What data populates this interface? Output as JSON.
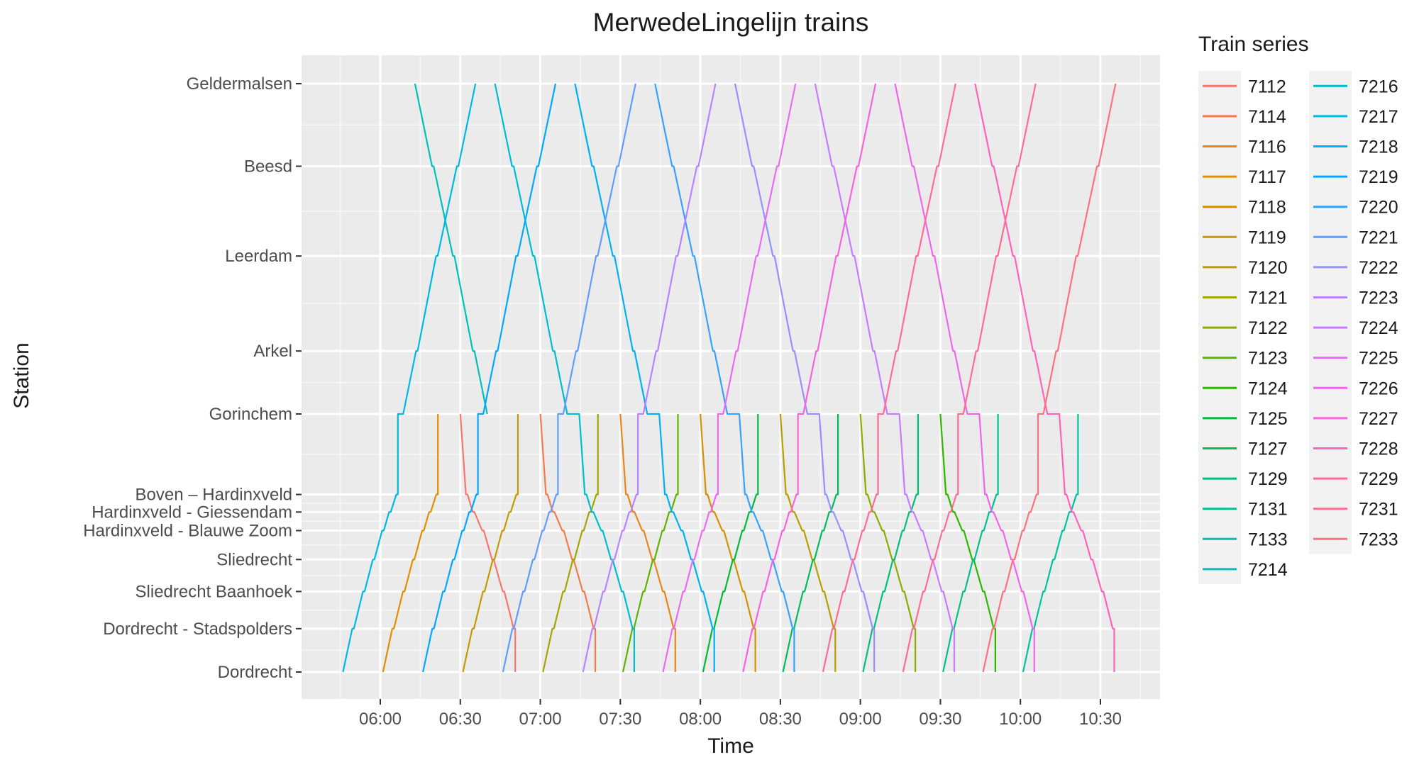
{
  "chart_data": {
    "type": "line",
    "title": "MerwedeLingelijn trains",
    "xlabel": "Time",
    "ylabel": "Station",
    "x_ticks": [
      "06:00",
      "06:30",
      "07:00",
      "07:30",
      "08:00",
      "08:30",
      "09:00",
      "09:30",
      "10:00",
      "10:30"
    ],
    "x_range": [
      "05:45",
      "11:30"
    ],
    "stations": [
      {
        "name": "Geldermalsen",
        "km": 57.0
      },
      {
        "name": "Beesd",
        "km": 49.0
      },
      {
        "name": "Leerdam",
        "km": 40.3
      },
      {
        "name": "Arkel",
        "km": 31.1
      },
      {
        "name": "Gorinchem",
        "km": 25.0
      },
      {
        "name": "Boven – Hardinxveld",
        "km": 17.2
      },
      {
        "name": "Hardinxveld - Giessendam",
        "km": 15.5
      },
      {
        "name": "Hardinxveld - Blauwe Zoom",
        "km": 13.7
      },
      {
        "name": "Sliedrecht",
        "km": 10.9
      },
      {
        "name": "Sliedrecht Baanhoek",
        "km": 7.8
      },
      {
        "name": "Dordrecht - Stadspolders",
        "km": 4.2
      },
      {
        "name": "Dordrecht",
        "km": 0.0
      }
    ],
    "grid": true,
    "legend_title": "Train series",
    "legend_placement": "right",
    "series": [
      {
        "name": "7112",
        "color": "#F8766D",
        "direction": "down",
        "segment": "gorinchem-dordrecht",
        "start": "06:30"
      },
      {
        "name": "7114",
        "color": "#F17C4A",
        "direction": "down",
        "segment": "gorinchem-dordrecht",
        "start": "07:00"
      },
      {
        "name": "7116",
        "color": "#E7861B",
        "direction": "down",
        "segment": "gorinchem-dordrecht",
        "start": "07:30"
      },
      {
        "name": "7117",
        "color": "#DF8F00",
        "direction": "up",
        "segment": "dordrecht-gorinchem",
        "start": "06:01"
      },
      {
        "name": "7118",
        "color": "#D39200",
        "direction": "down",
        "segment": "gorinchem-dordrecht",
        "start": "08:00"
      },
      {
        "name": "7119",
        "color": "#C49A00",
        "direction": "up",
        "segment": "dordrecht-gorinchem",
        "start": "06:31"
      },
      {
        "name": "7120",
        "color": "#B79F00",
        "direction": "down",
        "segment": "gorinchem-dordrecht",
        "start": "08:30"
      },
      {
        "name": "7121",
        "color": "#A3A500",
        "direction": "up",
        "segment": "dordrecht-gorinchem",
        "start": "07:01"
      },
      {
        "name": "7122",
        "color": "#8EAB00",
        "direction": "down",
        "segment": "gorinchem-dordrecht",
        "start": "09:00"
      },
      {
        "name": "7123",
        "color": "#60B200",
        "direction": "up",
        "segment": "dordrecht-gorinchem",
        "start": "07:31"
      },
      {
        "name": "7124",
        "color": "#2FB600",
        "direction": "down",
        "segment": "gorinchem-dordrecht",
        "start": "09:30"
      },
      {
        "name": "7125",
        "color": "#00BA38",
        "direction": "up",
        "segment": "dordrecht-gorinchem",
        "start": "08:01"
      },
      {
        "name": "7127",
        "color": "#00BD5C",
        "direction": "up",
        "segment": "dordrecht-gorinchem",
        "start": "08:31"
      },
      {
        "name": "7129",
        "color": "#00BF78",
        "direction": "up",
        "segment": "dordrecht-gorinchem",
        "start": "09:01"
      },
      {
        "name": "7131",
        "color": "#00C08D",
        "direction": "up",
        "segment": "dordrecht-gorinchem",
        "start": "09:31"
      },
      {
        "name": "7133",
        "color": "#00C1A3",
        "direction": "up",
        "segment": "dordrecht-gorinchem",
        "start": "10:01"
      },
      {
        "name": "7214",
        "color": "#00C0BA",
        "direction": "down",
        "segment": "geldermalsen-gorinchem",
        "start": "06:13"
      },
      {
        "name": "7216",
        "color": "#00BCCF",
        "direction": "down",
        "segment": "geldermalsen-dordrecht",
        "start": "06:43"
      },
      {
        "name": "7217",
        "color": "#00B8E5",
        "direction": "up",
        "segment": "dordrecht-geldermalsen",
        "start": "05:46"
      },
      {
        "name": "7218",
        "color": "#00B0F6",
        "direction": "down",
        "segment": "geldermalsen-dordrecht",
        "start": "07:13"
      },
      {
        "name": "7219",
        "color": "#00A9FF",
        "direction": "up",
        "segment": "dordrecht-geldermalsen",
        "start": "06:16"
      },
      {
        "name": "7220",
        "color": "#35A2FF",
        "direction": "down",
        "segment": "geldermalsen-dordrecht",
        "start": "07:43"
      },
      {
        "name": "7221",
        "color": "#619CFF",
        "direction": "up",
        "segment": "dordrecht-geldermalsen",
        "start": "06:46"
      },
      {
        "name": "7222",
        "color": "#9590FF",
        "direction": "down",
        "segment": "geldermalsen-dordrecht",
        "start": "08:13"
      },
      {
        "name": "7223",
        "color": "#B983FF",
        "direction": "up",
        "segment": "dordrecht-geldermalsen",
        "start": "07:16"
      },
      {
        "name": "7224",
        "color": "#C77CFF",
        "direction": "down",
        "segment": "geldermalsen-dordrecht",
        "start": "08:43"
      },
      {
        "name": "7225",
        "color": "#E76BF3",
        "direction": "up",
        "segment": "dordrecht-geldermalsen",
        "start": "07:46"
      },
      {
        "name": "7226",
        "color": "#F066EA",
        "direction": "down",
        "segment": "geldermalsen-dordrecht",
        "start": "09:13"
      },
      {
        "name": "7227",
        "color": "#FA62DB",
        "direction": "up",
        "segment": "dordrecht-geldermalsen",
        "start": "08:16"
      },
      {
        "name": "7228",
        "color": "#FF62BC",
        "direction": "down",
        "segment": "geldermalsen-dordrecht",
        "start": "09:43"
      },
      {
        "name": "7229",
        "color": "#FF6A98",
        "direction": "up",
        "segment": "dordrecht-geldermalsen",
        "start": "08:46"
      },
      {
        "name": "7231",
        "color": "#FF6C91",
        "direction": "up",
        "segment": "dordrecht-geldermalsen",
        "start": "09:16"
      },
      {
        "name": "7233",
        "color": "#FC717F",
        "direction": "up",
        "segment": "dordrecht-geldermalsen",
        "start": "09:46"
      }
    ]
  }
}
